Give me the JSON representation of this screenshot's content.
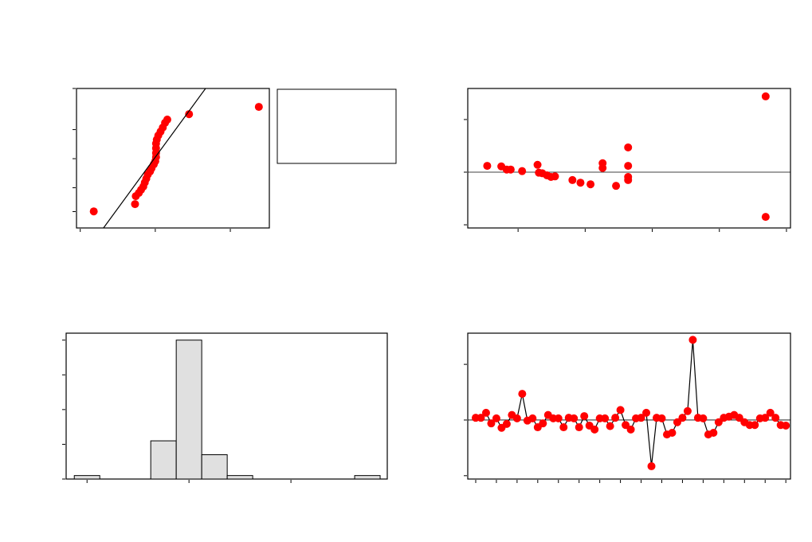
{
  "chart_data": [
    {
      "type": "scatter",
      "series": [
        {
          "color": "#ff0000",
          "mode": "markers",
          "x": [
            -0.82,
            -0.27,
            -0.26,
            -0.22,
            -0.19,
            -0.16,
            -0.14,
            -0.12,
            -0.1,
            -0.07,
            -0.05,
            -0.02,
            0,
            0.01,
            0.01,
            0.01,
            0.01,
            0.02,
            0.04,
            0.07,
            0.1,
            0.13,
            0.16,
            0.45,
            1.38
          ],
          "values": [
            -2.32,
            -2.0,
            -1.65,
            -1.51,
            -1.37,
            -1.23,
            -1.05,
            -0.88,
            -0.7,
            -0.56,
            -0.42,
            -0.25,
            -0.11,
            0.07,
            0.25,
            0.46,
            0.67,
            0.84,
            1.02,
            1.19,
            1.37,
            1.58,
            1.72,
            1.96,
            2.28
          ]
        },
        {
          "color": "#000000",
          "mode": "lines",
          "x": [
            -0.69,
            0.67
          ],
          "values": [
            -3.05,
            3.09
          ]
        }
      ],
      "xlim": [
        -1.05,
        1.52
      ],
      "xticks": [
        -1,
        0,
        1
      ],
      "ylim": [
        -3.05,
        3.09
      ],
      "yticks": [
        -2.33,
        -1.28,
        0,
        1.28,
        3.09
      ]
    },
    {
      "type": "scatter",
      "zero_line": true,
      "series": [
        {
          "color": "#ff0000",
          "mode": "markers",
          "x": [
            0.54,
            0.75,
            0.83,
            0.89,
            1.06,
            1.29,
            1.31,
            1.36,
            1.43,
            1.49,
            1.55,
            1.81,
            1.93,
            2.08,
            2.26,
            2.26,
            2.46,
            2.64,
            2.64,
            2.64,
            2.64,
            4.69,
            4.69
          ],
          "values": [
            0.12,
            0.11,
            0.05,
            0.05,
            0.02,
            0.14,
            -0.01,
            -0.02,
            -0.06,
            -0.09,
            -0.08,
            -0.15,
            -0.2,
            -0.23,
            0.17,
            0.08,
            -0.26,
            0.47,
            0.12,
            -0.09,
            -0.15,
            1.44,
            -0.85
          ]
        }
      ],
      "xlim": [
        0.25,
        5.06
      ],
      "xticks": [
        1,
        2,
        3,
        4,
        5
      ],
      "ylim": [
        -1.06,
        1.59
      ],
      "yticks": [
        -1,
        0,
        1
      ]
    },
    {
      "type": "histogram",
      "color": "#e0e0e0",
      "bins": [
        -2.25,
        -1.75,
        -1.25,
        -0.75,
        -0.25,
        0.25,
        0.75,
        1.25,
        1.75,
        2.25,
        2.75,
        3.25,
        3.75
      ],
      "values": [
        1,
        0,
        0,
        11,
        40,
        7,
        1,
        0,
        0,
        0,
        0,
        1
      ],
      "xlim": [
        -2.41,
        3.89
      ],
      "xticks": [
        -2,
        0,
        2
      ],
      "ylim": [
        0,
        42
      ],
      "yticks": [
        0,
        10,
        20,
        30,
        40
      ]
    },
    {
      "type": "line",
      "zero_line": true,
      "series": [
        {
          "color": "#ff0000",
          "line_color": "#000000",
          "mode": "lines+markers",
          "x": [
            1,
            2,
            3,
            4,
            5,
            6,
            7,
            8,
            9,
            10,
            11,
            12,
            13,
            14,
            15,
            16,
            17,
            18,
            19,
            20,
            21,
            22,
            23,
            24,
            25,
            26,
            27,
            28,
            29,
            30,
            31,
            32,
            33,
            34,
            35,
            36,
            37,
            38,
            39,
            40,
            41,
            42,
            43,
            44,
            45,
            46,
            47,
            48,
            49,
            50,
            51,
            52,
            53,
            54,
            55,
            56,
            57,
            58,
            59,
            60,
            61
          ],
          "values": [
            0.04,
            0.04,
            0.13,
            -0.06,
            0.03,
            -0.14,
            -0.07,
            0.09,
            0.03,
            0.47,
            -0.01,
            0.03,
            -0.13,
            -0.06,
            0.09,
            0.03,
            0.03,
            -0.13,
            0.04,
            0.03,
            -0.13,
            0.07,
            -0.1,
            -0.17,
            0.03,
            0.03,
            -0.11,
            0.04,
            0.18,
            -0.09,
            -0.17,
            0.03,
            0.04,
            0.13,
            -0.83,
            0.04,
            0.03,
            -0.26,
            -0.23,
            -0.04,
            0.04,
            0.16,
            1.44,
            0.04,
            0.03,
            -0.26,
            -0.23,
            -0.04,
            0.04,
            0.06,
            0.09,
            0.04,
            -0.04,
            -0.09,
            -0.09,
            0.03,
            0.04,
            0.13,
            0.04,
            -0.09,
            -0.1
          ]
        }
      ],
      "xlim": [
        -0.54,
        61.9
      ],
      "xticks": [
        1,
        5,
        9,
        13,
        17,
        21,
        25,
        29,
        33,
        37,
        41,
        45,
        49,
        53,
        57,
        61
      ],
      "ylim": [
        -1.06,
        1.56
      ],
      "yticks": [
        -1,
        0,
        1
      ]
    }
  ]
}
